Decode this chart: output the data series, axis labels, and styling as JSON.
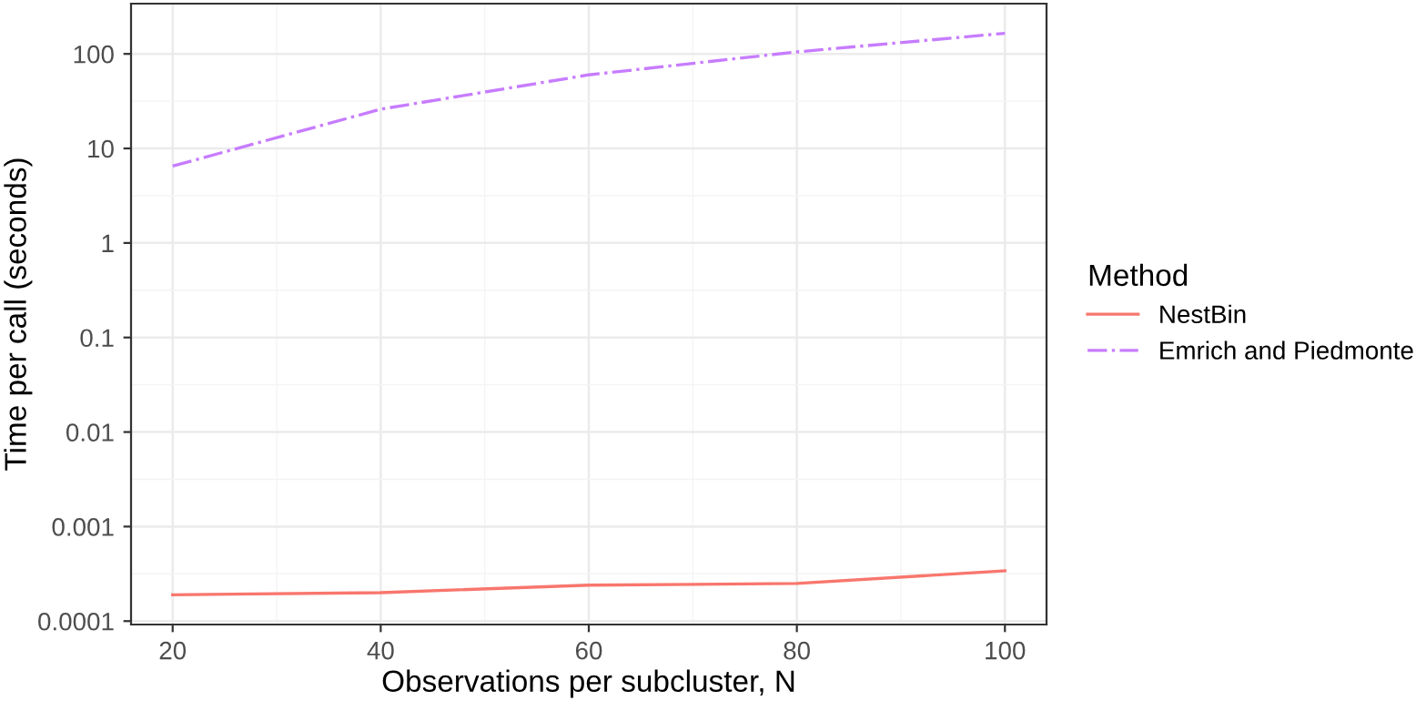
{
  "chart_data": {
    "type": "line",
    "xlabel": "Observations per subcluster, N",
    "ylabel": "Time per call (seconds)",
    "legend_title": "Method",
    "x": [
      20,
      40,
      60,
      80,
      100
    ],
    "series": [
      {
        "name": "NestBin",
        "color": "#f8766d",
        "line_style": "solid",
        "values": [
          0.00019,
          0.0002,
          0.00024,
          0.00025,
          0.00034
        ]
      },
      {
        "name": "Emrich and Piedmonte",
        "color": "#c77cff",
        "line_style": "dashdot",
        "values": [
          6.5,
          26,
          60,
          105,
          165
        ]
      }
    ],
    "log": "y",
    "xlim": [
      16,
      104
    ],
    "ylim": [
      9.2e-05,
      340
    ],
    "xticks": [
      20,
      40,
      60,
      80,
      100
    ],
    "yticks": [
      {
        "value": 0.0001,
        "label": "0.0001"
      },
      {
        "value": 0.001,
        "label": "0.001"
      },
      {
        "value": 0.01,
        "label": "0.01"
      },
      {
        "value": 0.1,
        "label": "0.1"
      },
      {
        "value": 1,
        "label": "1"
      },
      {
        "value": 10,
        "label": "10"
      },
      {
        "value": 100,
        "label": "100"
      }
    ],
    "grid": true,
    "legend": "right",
    "marker": "none"
  }
}
